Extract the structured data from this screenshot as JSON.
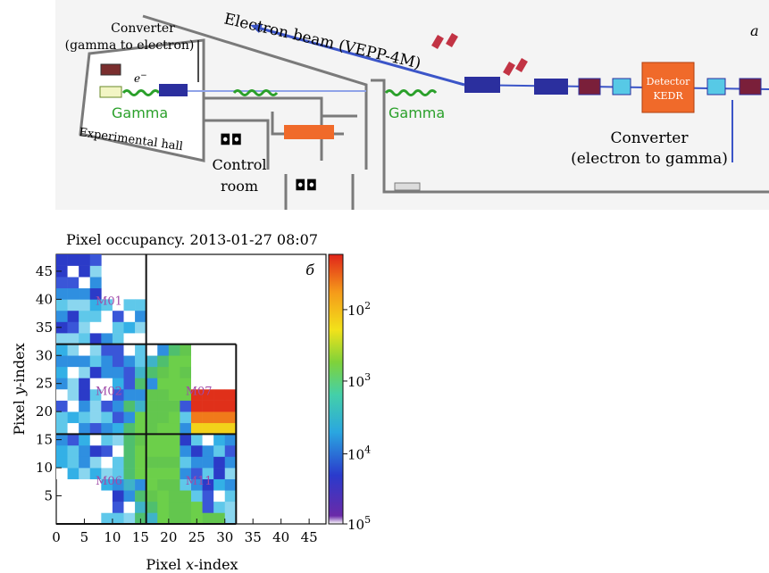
{
  "figure": {
    "panel_a": {
      "tag": "a",
      "electron_beam_label": "Electron beam (VEPP-4M)",
      "converter_left_line1": "Converter",
      "converter_left_line2": "(gamma to electron)",
      "electron_symbol": "e",
      "electron_sup": "−",
      "gamma_label": "Gamma",
      "experimental_hall_label": "Experimental hall",
      "control_room_line1": "Control",
      "control_room_line2": "room",
      "detector_line1": "Detector",
      "detector_line2": "KEDR",
      "converter_right_line1": "Converter",
      "converter_right_line2": "(electron to gamma)",
      "colors": {
        "beam": "#3b55c8",
        "gamma": "#2aa02a",
        "detector": "#f06a2a",
        "magnet": "#2b2f9e",
        "quad_cyan": "#57c9e6",
        "wall": "#7a7a7a"
      }
    }
  },
  "chart_data": {
    "type": "heatmap",
    "tag": "б",
    "title": "Pixel occupancy. 2013-01-27 08:07",
    "xlabel_pre": "Pixel ",
    "xlabel_var": "x",
    "xlabel_post": "-index",
    "ylabel_pre": "Pixel  ",
    "ylabel_var": "y",
    "ylabel_post": "-index",
    "xlim": [
      0,
      48
    ],
    "ylim": [
      0,
      48
    ],
    "x_ticks": [
      0,
      5,
      10,
      15,
      20,
      25,
      30,
      35,
      40,
      45
    ],
    "y_ticks": [
      5,
      10,
      15,
      20,
      25,
      30,
      35,
      40,
      45
    ],
    "colorbar": {
      "scale": "log",
      "tick_values": [
        100,
        1000,
        10000,
        100000
      ],
      "tick_bases": [
        "10",
        "10",
        "10",
        "10"
      ],
      "tick_exps": [
        "2",
        "3",
        "4",
        "5"
      ]
    },
    "modules": [
      {
        "name": "M01",
        "x": 7,
        "y": 39
      },
      {
        "name": "M02",
        "x": 7,
        "y": 23
      },
      {
        "name": "M07",
        "x": 23,
        "y": 23
      },
      {
        "name": "M06",
        "x": 7,
        "y": 7
      },
      {
        "name": "M11",
        "x": 23,
        "y": 7
      }
    ],
    "hot_region": {
      "x": [
        24,
        32
      ],
      "y": [
        16,
        24
      ]
    },
    "gamma_ring": {
      "center": [
        35,
        14
      ],
      "r_inner": 8,
      "r_outer": 24
    }
  }
}
